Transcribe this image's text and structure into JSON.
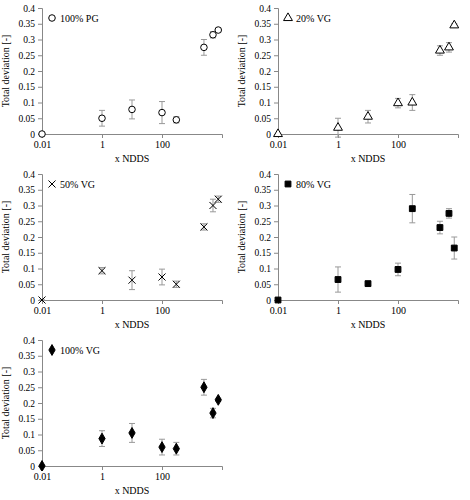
{
  "chart_data": [
    {
      "type": "scatter",
      "x_label": "x NDDS",
      "y_label": "Total deviation [-]",
      "log": "x",
      "legend": "upper left",
      "xlim": [
        0.01,
        10000
      ],
      "ylim": [
        0,
        0.4
      ],
      "xticks": [
        0.01,
        1,
        100
      ],
      "yticks": [
        0,
        0.05,
        0.1,
        0.15,
        0.2,
        0.25,
        0.3,
        0.35,
        0.4
      ],
      "x": [
        0.01,
        1,
        10,
        100,
        300,
        2500,
        5000,
        7500
      ],
      "series": [
        {
          "name": "100% PG",
          "color": "#000000",
          "marker": "circle-open",
          "values": [
            0,
            0.05,
            0.078,
            0.068,
            0.045,
            0.275,
            0.315,
            0.33
          ],
          "errors": [
            0,
            0.025,
            0.03,
            0.035,
            0.01,
            0.025,
            0.01,
            0.005
          ]
        }
      ]
    },
    {
      "type": "scatter",
      "x_label": "x NDDS",
      "y_label": "Total deviation [-]",
      "log": "x",
      "legend": "upper left",
      "xlim": [
        0.01,
        10000
      ],
      "ylim": [
        0,
        0.4
      ],
      "xticks": [
        0.01,
        1,
        100
      ],
      "yticks": [
        0,
        0.05,
        0.1,
        0.15,
        0.2,
        0.25,
        0.3,
        0.35,
        0.4
      ],
      "x": [
        0.01,
        1,
        10,
        100,
        300,
        2500,
        5000,
        7500
      ],
      "series": [
        {
          "name": "20% VG",
          "color": "#000000",
          "marker": "triangle-open",
          "values": [
            0,
            0.02,
            0.055,
            0.098,
            0.1,
            0.265,
            0.275,
            0.345
          ],
          "errors": [
            0,
            0.03,
            0.02,
            0.015,
            0.025,
            0.015,
            0.015,
            0.005
          ]
        }
      ]
    },
    {
      "type": "scatter",
      "x_label": "x NDDS",
      "y_label": "Total deviation [-]",
      "log": "x",
      "legend": "upper left",
      "xlim": [
        0.01,
        10000
      ],
      "ylim": [
        0,
        0.4
      ],
      "xticks": [
        0.01,
        1,
        100
      ],
      "yticks": [
        0,
        0.05,
        0.1,
        0.15,
        0.2,
        0.25,
        0.3,
        0.35,
        0.4
      ],
      "x": [
        0.01,
        1,
        10,
        100,
        300,
        2500,
        5000,
        7500
      ],
      "series": [
        {
          "name": "50% VG",
          "color": "#000000",
          "marker": "x",
          "values": [
            0,
            0.093,
            0.063,
            0.073,
            0.05,
            0.232,
            0.3,
            0.32
          ],
          "errors": [
            0,
            0.01,
            0.03,
            0.025,
            0.01,
            0.01,
            0.02,
            0.01
          ]
        }
      ]
    },
    {
      "type": "scatter",
      "x_label": "x NDDS",
      "y_label": "Total deviation [-]",
      "log": "x",
      "legend": "upper left",
      "xlim": [
        0.01,
        10000
      ],
      "ylim": [
        0,
        0.4
      ],
      "xticks": [
        0.01,
        1,
        100
      ],
      "yticks": [
        0,
        0.05,
        0.1,
        0.15,
        0.2,
        0.25,
        0.3,
        0.35,
        0.4
      ],
      "x": [
        0.01,
        1,
        10,
        100,
        300,
        2500,
        5000,
        7500
      ],
      "series": [
        {
          "name": "80% VG",
          "color": "#000000",
          "marker": "square",
          "values": [
            0,
            0.065,
            0.052,
            0.097,
            0.29,
            0.23,
            0.275,
            0.165
          ],
          "errors": [
            0,
            0.04,
            0.005,
            0.02,
            0.045,
            0.02,
            0.015,
            0.035
          ]
        }
      ]
    },
    {
      "type": "scatter",
      "x_label": "x NDDS",
      "y_label": "Total deviation [-]",
      "log": "x",
      "legend": "upper left",
      "xlim": [
        0.01,
        10000
      ],
      "ylim": [
        0,
        0.4
      ],
      "xticks": [
        0.01,
        1,
        100
      ],
      "yticks": [
        0,
        0.05,
        0.1,
        0.15,
        0.2,
        0.25,
        0.3,
        0.35,
        0.4
      ],
      "x": [
        0.01,
        1,
        10,
        100,
        300,
        2500,
        5000,
        7500
      ],
      "series": [
        {
          "name": "100% VG",
          "color": "#000000",
          "marker": "diamond",
          "values": [
            0,
            0.087,
            0.105,
            0.06,
            0.055,
            0.25,
            0.168,
            0.21
          ],
          "errors": [
            0,
            0.025,
            0.03,
            0.025,
            0.02,
            0.025,
            0.015,
            0.005
          ]
        }
      ]
    }
  ]
}
